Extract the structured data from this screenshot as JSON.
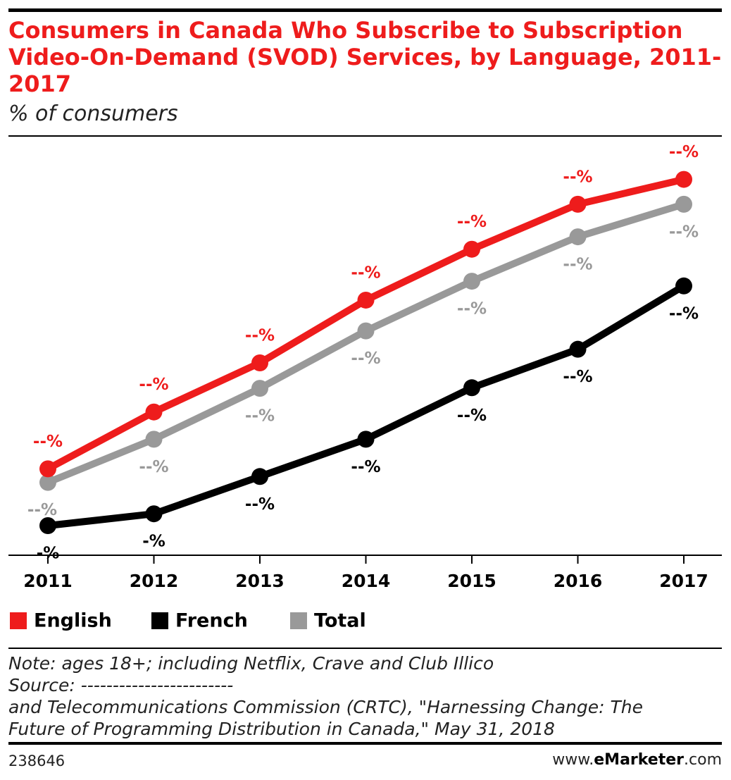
{
  "chart_data": {
    "type": "line",
    "title": "Consumers in Canada Who Subscribe to Subscription Video-On-Demand (SVOD) Services, by Language, 2011-2017",
    "subtitle": "% of consumers",
    "categories": [
      "2011",
      "2012",
      "2013",
      "2014",
      "2015",
      "2016",
      "2017"
    ],
    "ylim": [
      0,
      70
    ],
    "series": [
      {
        "name": "English",
        "color": "#ee1c1c",
        "values": [
          14.6,
          24.2,
          32.5,
          43.1,
          51.7,
          59.3,
          63.5
        ],
        "value_labels": [
          "--%",
          "--%",
          "--%",
          "--%",
          "--%",
          "--%",
          "--%"
        ]
      },
      {
        "name": "French",
        "color": "#000000",
        "values": [
          5.0,
          7.0,
          13.3,
          19.6,
          28.3,
          34.8,
          45.5
        ],
        "value_labels": [
          "-%",
          "-%",
          "--%",
          "--%",
          "--%",
          "--%",
          "--%"
        ]
      },
      {
        "name": "Total",
        "color": "#999999",
        "values": [
          12.3,
          19.6,
          28.2,
          37.9,
          46.3,
          53.8,
          59.3
        ],
        "value_labels": [
          "--%",
          "--%",
          "--%",
          "--%",
          "--%",
          "--%",
          "--%"
        ]
      }
    ]
  },
  "notes": [
    "Note: ages 18+; including Netflix, Crave and Club Illico",
    "Source: ------------------------",
    "and Telecommunications Commission (CRTC), \"Harnessing Change: The",
    "Future of Programming Distribution in Canada,\" May 31, 2018"
  ],
  "footer": {
    "id": "238646",
    "site_prefix": "www.",
    "site_brand": "eMarketer",
    "site_suffix": ".com"
  }
}
